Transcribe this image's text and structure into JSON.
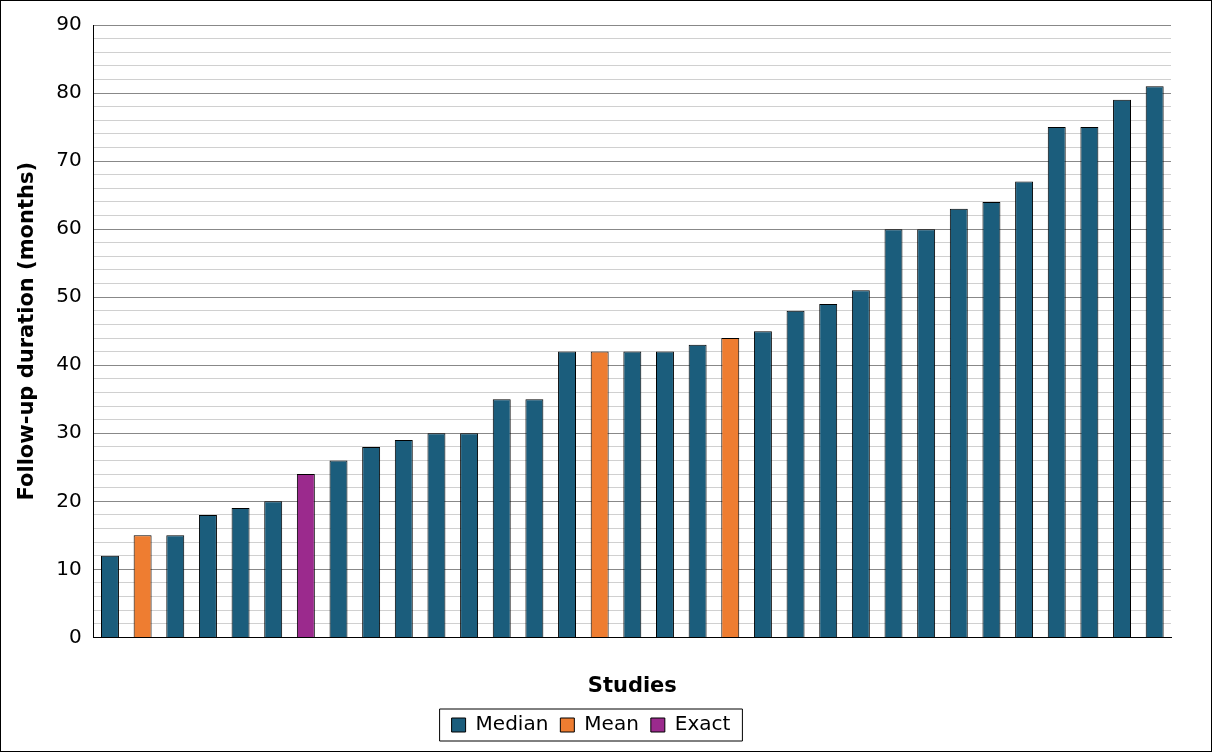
{
  "chart_data": {
    "type": "bar",
    "xlabel": "Studies",
    "ylabel": "Follow-up duration (months)",
    "categories": [
      null,
      null,
      null,
      null,
      null,
      null,
      null,
      null,
      null,
      null,
      null,
      null,
      null,
      null,
      null,
      null,
      null,
      null,
      null,
      null,
      null,
      null,
      null,
      null,
      null,
      null,
      null,
      null,
      null,
      null,
      null,
      null,
      null
    ],
    "series": [
      {
        "name": "Median",
        "color": "#1b5d7c",
        "values": [
          12,
          null,
          15,
          18,
          19,
          20,
          null,
          26,
          28,
          29,
          30,
          30,
          35,
          35,
          42,
          null,
          42,
          42,
          43,
          null,
          45,
          48,
          49,
          51,
          60,
          60,
          63,
          64,
          67,
          75,
          75,
          79,
          81
        ]
      },
      {
        "name": "Mean",
        "color": "#ee7d31",
        "values": [
          null,
          15,
          null,
          null,
          null,
          null,
          null,
          null,
          null,
          null,
          null,
          null,
          null,
          null,
          null,
          42,
          null,
          null,
          null,
          44,
          null,
          null,
          null,
          null,
          null,
          null,
          null,
          null,
          null,
          null,
          null,
          null,
          null
        ]
      },
      {
        "name": "Exact",
        "color": "#9b2a8d",
        "values": [
          null,
          null,
          null,
          null,
          null,
          null,
          24,
          null,
          null,
          null,
          null,
          null,
          null,
          null,
          null,
          null,
          null,
          null,
          null,
          null,
          null,
          null,
          null,
          null,
          null,
          null,
          null,
          null,
          null,
          null,
          null,
          null,
          null
        ]
      }
    ],
    "ylim": [
      0,
      90
    ],
    "yticks": [
      0,
      {
        "value": 2,
        "label": null
      },
      {
        "value": 4,
        "label": null
      },
      {
        "value": 6,
        "label": null
      },
      {
        "value": 8,
        "label": null
      },
      10,
      {
        "value": 12,
        "label": null
      },
      {
        "value": 14,
        "label": null
      },
      {
        "value": 16,
        "label": null
      },
      {
        "value": 18,
        "label": null
      },
      20,
      {
        "value": 22,
        "label": null
      },
      {
        "value": 24,
        "label": null
      },
      {
        "value": 26,
        "label": null
      },
      {
        "value": 28,
        "label": null
      },
      30,
      {
        "value": 32,
        "label": null
      },
      {
        "value": 34,
        "label": null
      },
      {
        "value": 36,
        "label": null
      },
      {
        "value": 38,
        "label": null
      },
      40,
      {
        "value": 42,
        "label": null
      },
      {
        "value": 44,
        "label": null
      },
      {
        "value": 46,
        "label": null
      },
      {
        "value": 48,
        "label": null
      },
      50,
      {
        "value": 52,
        "label": null
      },
      {
        "value": 54,
        "label": null
      },
      {
        "value": 56,
        "label": null
      },
      {
        "value": 58,
        "label": null
      },
      60,
      {
        "value": 62,
        "label": null
      },
      {
        "value": 64,
        "label": null
      },
      {
        "value": 66,
        "label": null
      },
      {
        "value": 68,
        "label": null
      },
      70,
      {
        "value": 72,
        "label": null
      },
      {
        "value": 74,
        "label": null
      },
      {
        "value": 76,
        "label": null
      },
      {
        "value": 78,
        "label": null
      },
      80,
      {
        "value": 82,
        "label": null
      },
      {
        "value": 84,
        "label": null
      },
      {
        "value": 86,
        "label": null
      },
      {
        "value": 88,
        "label": null
      },
      90
    ],
    "grid": "y",
    "legend": "bottom"
  }
}
